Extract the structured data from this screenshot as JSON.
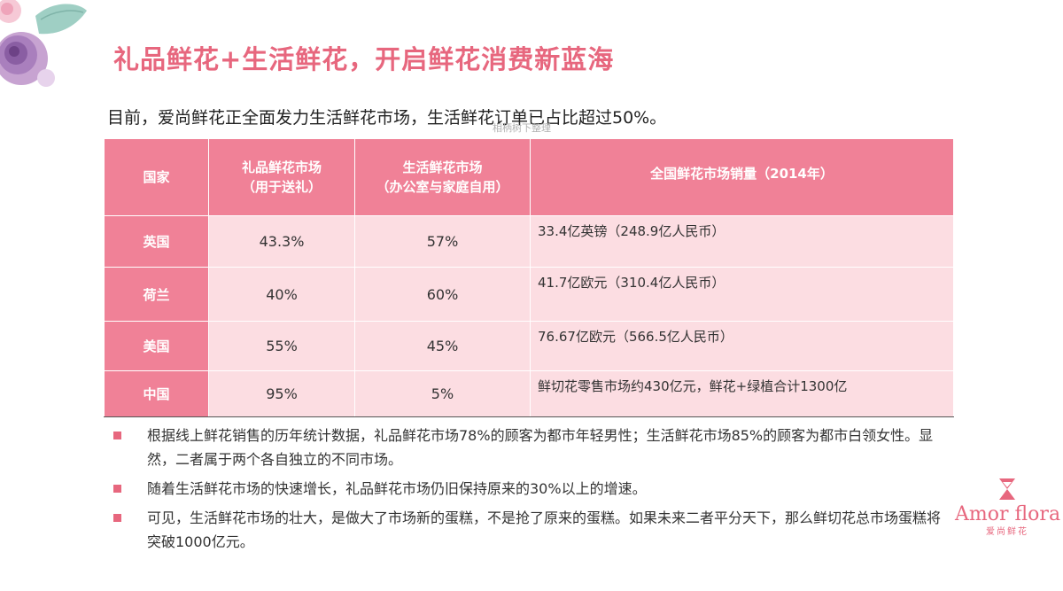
{
  "title": "礼品鲜花+生活鲜花，开启鲜花消费新蓝海",
  "subtitle": "目前，爱尚鲜花正全面发力生活鲜花市场，生活鲜花订单已占比超过50%。",
  "watermark": "相柄树下整理",
  "table": {
    "headers": {
      "country": "国家",
      "gift_line1": "礼品鲜花市场",
      "gift_line2": "（用于送礼）",
      "life_line1": "生活鲜花市场",
      "life_line2": "（办公室与家庭自用）",
      "total": "全国鲜花市场销量（2014年）"
    },
    "rows": [
      {
        "country": "英国",
        "gift": "43.3%",
        "life": "57%",
        "total": "33.4亿英镑（248.9亿人民币）"
      },
      {
        "country": "荷兰",
        "gift": "40%",
        "life": "60%",
        "total": "41.7亿欧元（310.4亿人民币）"
      },
      {
        "country": "美国",
        "gift": "55%",
        "life": "45%",
        "total": "76.67亿欧元（566.5亿人民币）"
      },
      {
        "country": "中国",
        "gift": "95%",
        "life": "5%",
        "total": "鲜切花零售市场约430亿元，鲜花+绿植合计1300亿"
      }
    ]
  },
  "bullets": [
    "根据线上鲜花销售的历年统计数据，礼品鲜花市场78%的顾客为都市年轻男性；生活鲜花市场85%的顾客为都市白领女性。显然，二者属于两个各自独立的不同市场。",
    "随着生活鲜花市场的快速增长，礼品鲜花市场仍旧保持原来的30%以上的增速。",
    "可见，生活鲜花市场的壮大，是做大了市场新的蛋糕，不是抢了原来的蛋糕。如果未来二者平分天下，那么鲜切花总市场蛋糕将突破1000亿元。"
  ],
  "logo": {
    "name": "Amor flora",
    "sub": "爱尚鲜花"
  },
  "colors": {
    "accent": "#e7677e",
    "header_bg": "#f08197",
    "cell_bg": "#fcdde2"
  }
}
